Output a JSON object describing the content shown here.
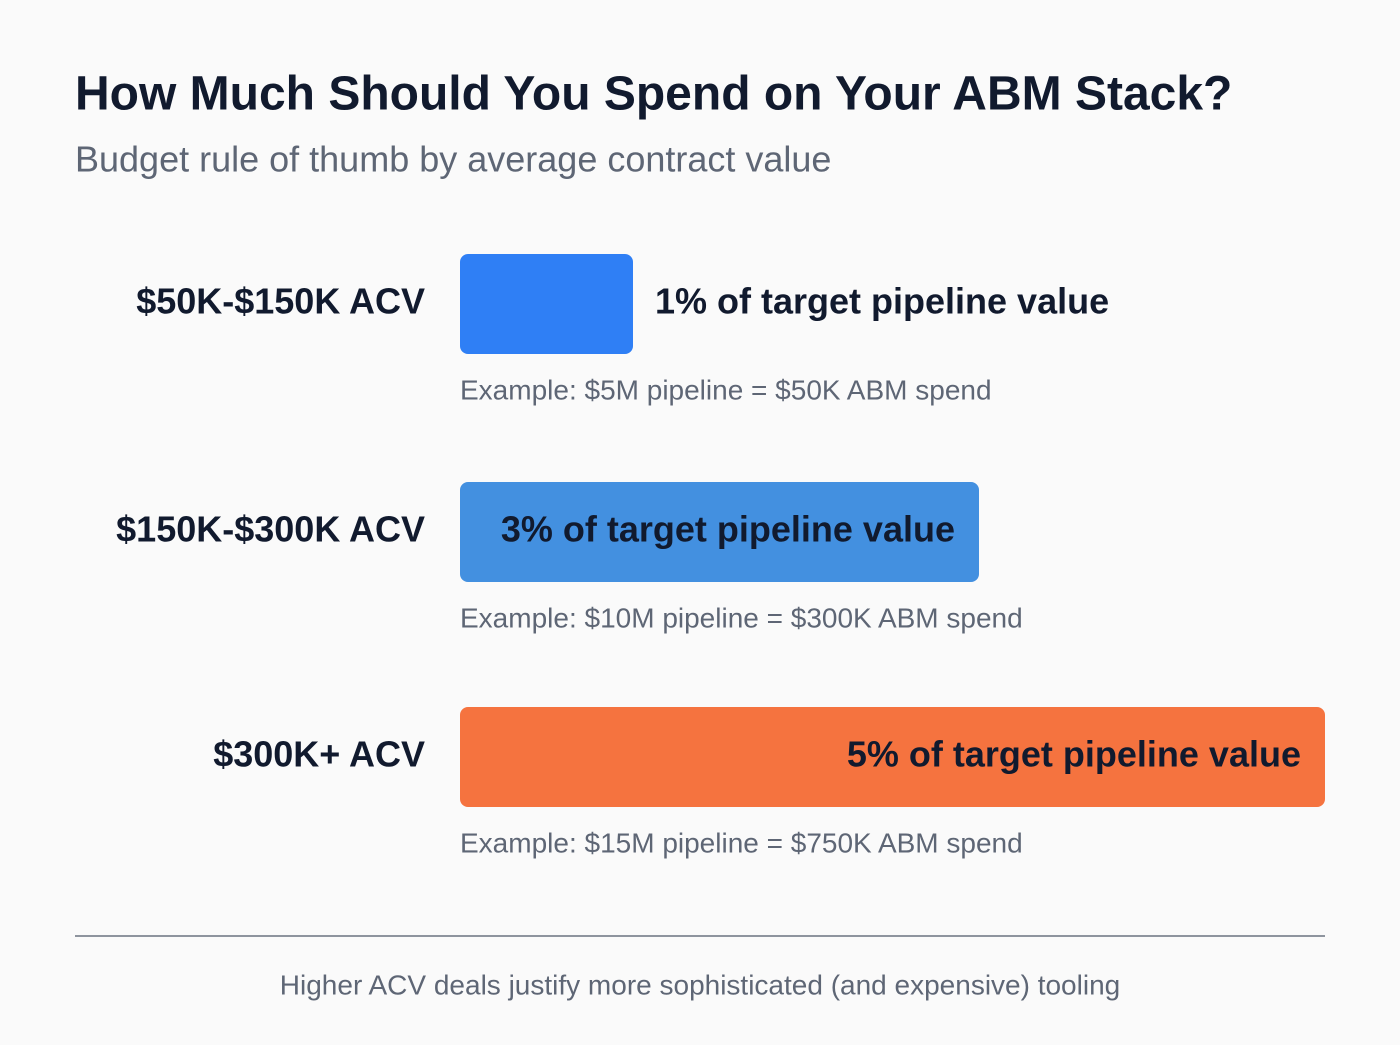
{
  "chart_data": {
    "type": "bar",
    "orientation": "horizontal",
    "title": "How Much Should You Spend on Your ABM Stack?",
    "subtitle": "Budget rule of thumb by average contract value",
    "categories": [
      "$50K-$150K ACV",
      "$150K-$300K ACV",
      "$300K+ ACV"
    ],
    "values": [
      1,
      3,
      5
    ],
    "value_labels": [
      "1% of target pipeline value",
      "3% of target pipeline value",
      "5% of target pipeline value"
    ],
    "colors": [
      "#2f7ff5",
      "#4390e0",
      "#f5733f"
    ],
    "annotations": [
      "Example: $5M pipeline = $50K ABM spend",
      "Example: $10M pipeline = $300K ABM spend",
      "Example: $15M pipeline = $750K ABM spend"
    ],
    "xlim": [
      0,
      5
    ],
    "footnote": "Higher ACV deals justify more sophisticated (and expensive) tooling"
  }
}
